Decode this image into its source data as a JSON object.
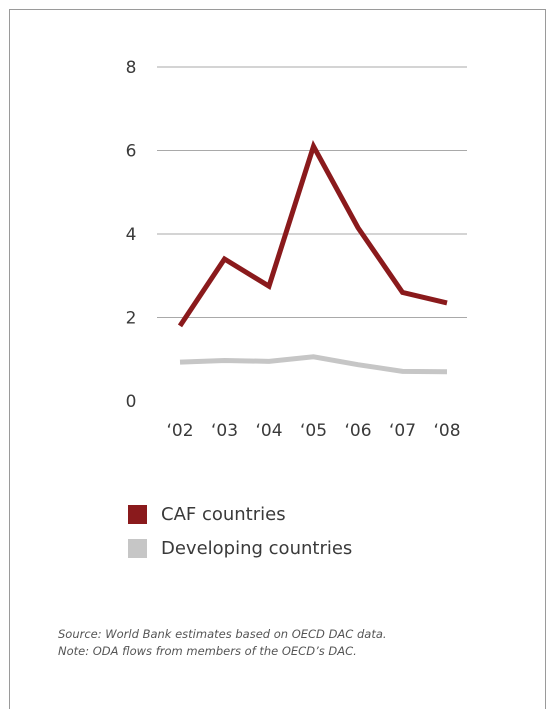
{
  "chart_data": {
    "type": "line",
    "categories": [
      "‘02",
      "‘03",
      "‘04",
      "‘05",
      "‘06",
      "‘07",
      "‘08"
    ],
    "y_ticks": [
      "0",
      "2",
      "4",
      "6",
      "8"
    ],
    "ylim": [
      0,
      8
    ],
    "grid": true,
    "legend_position": "bottom-left",
    "series": [
      {
        "name": "CAF countries",
        "color": "#8a1a1c",
        "values": [
          1.8,
          3.4,
          2.75,
          6.1,
          4.15,
          2.6,
          2.35
        ]
      },
      {
        "name": "Developing countries",
        "color": "#c6c6c6",
        "values": [
          0.93,
          0.97,
          0.95,
          1.06,
          0.87,
          0.71,
          0.7
        ]
      }
    ]
  },
  "notes": {
    "source": "Source: World Bank estimates based on OECD DAC data.",
    "note": "Note: ODA flows from members of the OECD’s DAC."
  }
}
